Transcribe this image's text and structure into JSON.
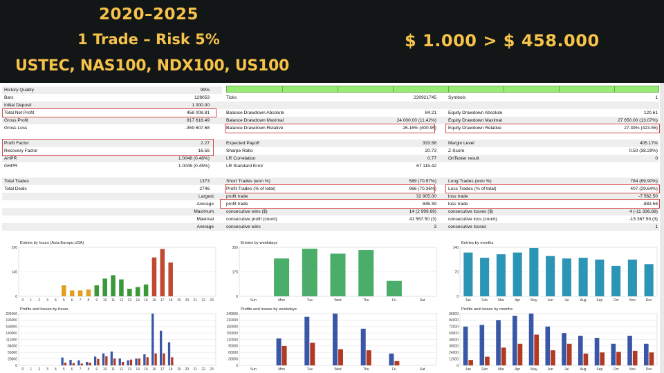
{
  "banner": {
    "years": "2020–2025",
    "trade_risk": "1 Trade – Risk 5%",
    "symbols": "USTEC, NAS100, NDX100, US100",
    "growth": "$ 1.000 > $ 458.000"
  },
  "report": {
    "rows": [
      {
        "id": "r0",
        "c0l": "History Quality",
        "c0r": "99%"
      },
      {
        "id": "r1",
        "c0l": "Bars",
        "c0r": "128053",
        "c1l": "Ticks",
        "c1r": "230921745",
        "c2l": "Symbols",
        "c2r": "1"
      },
      {
        "id": "r2",
        "c0l": "Initial Deposit",
        "c0r": "1 000.00"
      },
      {
        "id": "r3",
        "c0l": "Total Net Profit",
        "c0r": "458 008.81",
        "c1l": "Balance Drawdown Absolute",
        "c1r": "84.21",
        "c2l": "Equity Drawdown Absolute",
        "c2r": "120.61"
      },
      {
        "id": "r4",
        "c0l": "Gross Profit",
        "c0r": "817 616.49",
        "c1l": "Balance Drawdown Maximal",
        "c1r": "24 000.00 (11.42%)",
        "c2l": "Equity Drawdown Maximal",
        "c2r": "27 650.00 (13.07%)"
      },
      {
        "id": "r5",
        "c0l": "Gross Loss",
        "c0r": "-359 607.68",
        "c1l": "Balance Drawdown Relative",
        "c1r": "26.16% (400.95)",
        "c2l": "Equity Drawdown Relative",
        "c2r": "27.39% (423.55)"
      },
      {
        "id": "r6"
      },
      {
        "id": "r7",
        "c0l": "Profit Factor",
        "c0r": "2.27",
        "c1l": "Expected Payoff",
        "c1r": "333.58",
        "c2l": "Margin Level",
        "c2r": "405.17%"
      },
      {
        "id": "r8",
        "c0l": "Recovery Factor",
        "c0r": "16.56",
        "c1l": "Sharpe Ratio",
        "c1r": "20.73",
        "c2l": "Z-Score",
        "c2r": "0.50 (38.29%)"
      },
      {
        "id": "r9",
        "c0l": "AHPR",
        "c0r": "1.0048 (0.48%)",
        "c1l": "LR Correlation",
        "c1r": "0.77",
        "c2l": "OnTester result",
        "c2r": "0"
      },
      {
        "id": "r10",
        "c0l": "GHPR",
        "c0r": "1.0045 (0.45%)",
        "c1l": "LR Standard Error",
        "c1r": "67 115.42"
      },
      {
        "id": "r11"
      },
      {
        "id": "r12",
        "c0l": "Total Trades",
        "c0r": "1373",
        "c1l": "Short Trades (won %)",
        "c1r": "589 (70.97%)",
        "c2l": "Long Trades (won %)",
        "c2r": "784 (69.90%)"
      },
      {
        "id": "r13",
        "c0l": "Total Deals",
        "c0r": "2746",
        "c1l": "Profit Trades (% of total)",
        "c1r": "966 (70.36%)",
        "c2l": "Loss Trades (% of total)",
        "c2r": "407 (29.64%)"
      },
      {
        "id": "r14",
        "c0lr": "Largest",
        "c1l": "profit trade",
        "c1r": "32 905.00",
        "c2l": "loss trade",
        "c2r": "-7 562.50"
      },
      {
        "id": "r15",
        "c0lr": "Average",
        "c1l": "profit trade",
        "c1r": "846.39",
        "c2l": "loss trade",
        "c2r": "-883.56"
      },
      {
        "id": "r16",
        "c0lr": "Maximum",
        "c1l": "consecutive wins ($)",
        "c1r": "14 (2 999.69)",
        "c2l": "consecutive losses ($)",
        "c2r": "4 (-11 336.68)"
      },
      {
        "id": "r17",
        "c0lr": "Maximal",
        "c1l": "consecutive profit (count)",
        "c1r": "41 567.50 (3)",
        "c2l": "consecutive loss (count)",
        "c2r": "-15 367.50 (3)"
      },
      {
        "id": "r18",
        "c0lr": "Average",
        "c1l": "consecutive wins",
        "c1r": "3",
        "c2l": "consecutive losses",
        "c2r": "1"
      }
    ]
  },
  "chart_data": [
    {
      "id": "hours_entries",
      "type": "bar",
      "title": "Entries by hours (Asia,Europe,USA)",
      "categories": [
        "0",
        "1",
        "2",
        "3",
        "4",
        "5",
        "6",
        "7",
        "8",
        "9",
        "10",
        "11",
        "12",
        "13",
        "14",
        "15",
        "16",
        "17",
        "18",
        "19",
        "20",
        "21",
        "22",
        "23"
      ],
      "values": [
        0,
        0,
        0,
        0,
        0,
        65,
        35,
        35,
        40,
        65,
        105,
        125,
        100,
        45,
        55,
        70,
        230,
        280,
        200,
        0,
        0,
        0,
        0,
        0
      ],
      "colors": [
        "#e0a020",
        "#e0a020",
        "#e0a020",
        "#e0a020",
        "#e0a020",
        "#e0a020",
        "#e0a020",
        "#e0a020",
        "#e0a020",
        "#3a9a3a",
        "#3a9a3a",
        "#3a9a3a",
        "#3a9a3a",
        "#3a9a3a",
        "#3a9a3a",
        "#3a9a3a",
        "#c04a30",
        "#c04a30",
        "#c04a30",
        "#c04a30",
        "#c04a30",
        "#c04a30",
        "#c04a30",
        "#c04a30"
      ],
      "yticks": [
        "290",
        "145",
        "0"
      ],
      "ylim": [
        0,
        290
      ]
    },
    {
      "id": "weekday_entries",
      "type": "bar",
      "title": "Entries by weekdays",
      "categories": [
        "Sun",
        "Mon",
        "Tue",
        "Wed",
        "Thu",
        "Fri",
        "Sat"
      ],
      "values": [
        0,
        270,
        340,
        305,
        330,
        110,
        0
      ],
      "colors": [
        "#4aae6a",
        "#4aae6a",
        "#4aae6a",
        "#4aae6a",
        "#4aae6a",
        "#4aae6a",
        "#4aae6a"
      ],
      "yticks": [
        "350",
        "175",
        "0"
      ],
      "ylim": [
        0,
        350
      ]
    },
    {
      "id": "month_entries",
      "type": "bar",
      "title": "Entries by months",
      "categories": [
        "Jan",
        "Feb",
        "Mar",
        "Apr",
        "May",
        "Jun",
        "Jul",
        "Aug",
        "Sep",
        "Oct",
        "Nov",
        "Dec"
      ],
      "values": [
        125,
        110,
        120,
        125,
        138,
        115,
        108,
        110,
        105,
        87,
        105,
        92
      ],
      "colors": [
        "#2c94b4",
        "#2c94b4",
        "#2c94b4",
        "#2c94b4",
        "#2c94b4",
        "#2c94b4",
        "#2c94b4",
        "#2c94b4",
        "#2c94b4",
        "#2c94b4",
        "#2c94b4",
        "#2c94b4"
      ],
      "yticks": [
        "140",
        "70",
        "0"
      ],
      "ylim": [
        0,
        140
      ]
    },
    {
      "id": "hours_pl",
      "type": "bar",
      "title": "Profits and losses by hours",
      "categories": [
        "0",
        "1",
        "2",
        "3",
        "4",
        "5",
        "6",
        "7",
        "8",
        "9",
        "10",
        "11",
        "12",
        "13",
        "14",
        "15",
        "16",
        "17",
        "18",
        "19",
        "20",
        "21",
        "22",
        "23"
      ],
      "series": [
        {
          "values": [
            0,
            0,
            0,
            0,
            0,
            34000,
            24000,
            22000,
            15000,
            38000,
            52000,
            60000,
            30000,
            22000,
            30000,
            48000,
            224000,
            150000,
            100000,
            0,
            0,
            0,
            0,
            0
          ],
          "color": "#3a56a6"
        },
        {
          "values": [
            0,
            0,
            0,
            0,
            0,
            12000,
            10000,
            8000,
            12000,
            28000,
            40000,
            30000,
            15000,
            25000,
            30000,
            35000,
            52000,
            52000,
            35000,
            0,
            0,
            0,
            0,
            0
          ],
          "color": "#b03a22"
        }
      ],
      "yticks": [
        "224000",
        "196000",
        "168000",
        "140000",
        "112000",
        "84000",
        "56000",
        "28000",
        "0"
      ],
      "ylim": [
        0,
        224000
      ]
    },
    {
      "id": "weekday_pl",
      "type": "bar",
      "title": "Profits and losses by weekdays",
      "categories": [
        "Sun",
        "Mon",
        "Tue",
        "Wed",
        "Thu",
        "Fri",
        "Sat"
      ],
      "series": [
        {
          "values": [
            0,
            125000,
            225000,
            240000,
            170000,
            55000,
            0
          ],
          "color": "#3a56a6"
        },
        {
          "values": [
            0,
            90000,
            105000,
            75000,
            70000,
            20000,
            0
          ],
          "color": "#b03a22"
        }
      ],
      "yticks": [
        "240000",
        "210000",
        "180000",
        "150000",
        "120000",
        "90000",
        "60000",
        "30000",
        "0"
      ],
      "ylim": [
        0,
        240000
      ]
    },
    {
      "id": "month_pl",
      "type": "bar",
      "title": "Profits and losses by months",
      "categories": [
        "Jan",
        "Feb",
        "Mar",
        "Apr",
        "May",
        "Jun",
        "Jul",
        "Aug",
        "Sep",
        "Oct",
        "Nov",
        "Dec"
      ],
      "series": [
        {
          "values": [
            72000,
            75000,
            84000,
            92000,
            96000,
            72000,
            60000,
            55000,
            51000,
            40000,
            55000,
            40000
          ],
          "color": "#3a56a6"
        },
        {
          "values": [
            10000,
            16000,
            33000,
            40000,
            57000,
            28000,
            40000,
            22000,
            24000,
            25000,
            27000,
            24000
          ],
          "color": "#b03a22"
        }
      ],
      "yticks": [
        "96000",
        "84000",
        "72000",
        "60000",
        "48000",
        "36000",
        "24000",
        "12000",
        "0"
      ],
      "ylim": [
        0,
        96000
      ]
    }
  ]
}
